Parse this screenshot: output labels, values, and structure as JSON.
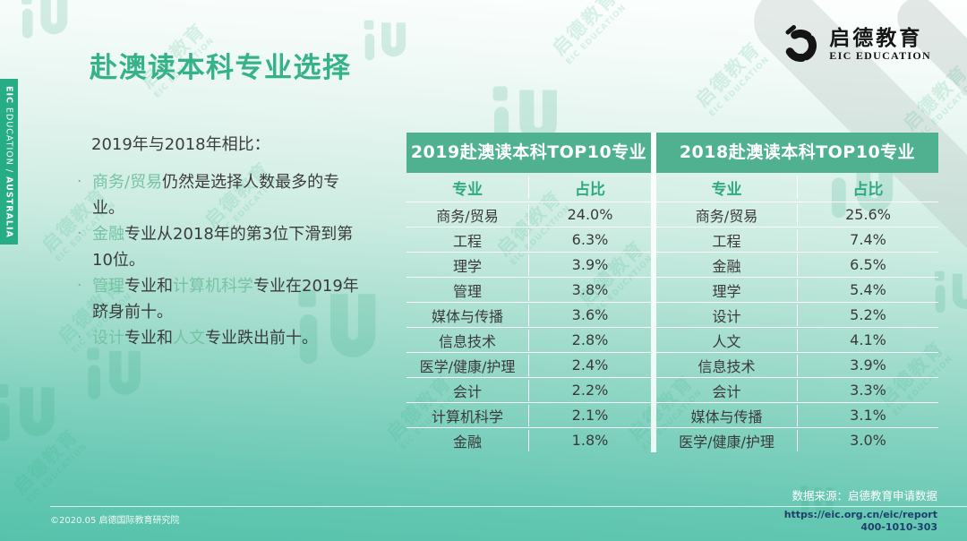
{
  "page_title": "赴澳读本科专业选择",
  "sidebar": {
    "brand_bold": "EIC",
    "brand_light": " EDUCATION / ",
    "region": "AUSTRALIA"
  },
  "logo": {
    "name_cn": "启德教育",
    "name_en": "EIC EDUCATION"
  },
  "intro": {
    "lead": "2019年与2018年相比：",
    "bullet_marker": "·",
    "bullets": [
      [
        {
          "t": "商务/贸易",
          "hl": true
        },
        {
          "t": "仍然是选择人数最多的专业。",
          "hl": false
        }
      ],
      [
        {
          "t": "金融",
          "hl": true
        },
        {
          "t": "专业从2018年的第3位下滑到第10位。",
          "hl": false
        }
      ],
      [
        {
          "t": "管理",
          "hl": true
        },
        {
          "t": "专业和",
          "hl": false
        },
        {
          "t": "计算机科学",
          "hl": true
        },
        {
          "t": "专业在2019年跻身前十。",
          "hl": false
        }
      ],
      [
        {
          "t": "设计",
          "hl": true
        },
        {
          "t": "专业和",
          "hl": false
        },
        {
          "t": "人文",
          "hl": true
        },
        {
          "t": "专业跌出前十。",
          "hl": false
        }
      ]
    ]
  },
  "tables": [
    {
      "title": "2019赴澳读本科TOP10专业",
      "col_major": "专业",
      "col_share": "占比",
      "rows": [
        [
          "商务/贸易",
          "24.0%"
        ],
        [
          "工程",
          "6.3%"
        ],
        [
          "理学",
          "3.9%"
        ],
        [
          "管理",
          "3.8%"
        ],
        [
          "媒体与传播",
          "3.6%"
        ],
        [
          "信息技术",
          "2.8%"
        ],
        [
          "医学/健康/护理",
          "2.4%"
        ],
        [
          "会计",
          "2.2%"
        ],
        [
          "计算机科学",
          "2.1%"
        ],
        [
          "金融",
          "1.8%"
        ]
      ]
    },
    {
      "title": "2018赴澳读本科TOP10专业",
      "col_major": "专业",
      "col_share": "占比",
      "rows": [
        [
          "商务/贸易",
          "25.6%"
        ],
        [
          "工程",
          "7.4%"
        ],
        [
          "金融",
          "6.5%"
        ],
        [
          "理学",
          "5.4%"
        ],
        [
          "设计",
          "5.2%"
        ],
        [
          "人文",
          "4.1%"
        ],
        [
          "信息技术",
          "3.9%"
        ],
        [
          "会计",
          "3.3%"
        ],
        [
          "媒体与传播",
          "3.1%"
        ],
        [
          "医学/健康/护理",
          "3.0%"
        ]
      ]
    }
  ],
  "footer": {
    "copyright": "©2020.05 启德国际教育研究院",
    "data_source": "数据来源：启德教育申请数据",
    "url": "https://eic.org.cn/eic/report",
    "phone": "400-1010-303"
  },
  "watermark": {
    "glyph": "iU",
    "text_cn": "启德教育",
    "text_en": "EIC EDUCATION"
  },
  "colors": {
    "accent_green": "#35b287",
    "band_green": "#4fb190",
    "header_text_green": "#2fa982",
    "highlight_green": "#74c3a3",
    "sidebar_green": "#27ad85",
    "footer_link_navy": "#1e3f6e",
    "teal_bottom": "#57c2ab"
  }
}
